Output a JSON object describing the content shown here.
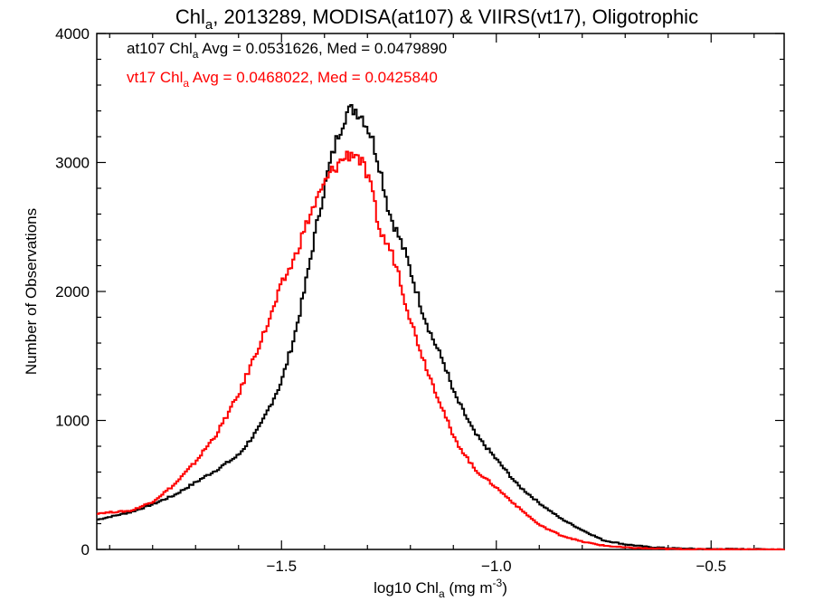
{
  "chart_data": {
    "type": "line",
    "title": {
      "pre": "Chl",
      "sub": "a",
      "post": ", 2013289, MODISA(at107) & VIIRS(vt17), Oligotrophic"
    },
    "xlabel": {
      "pre": "log10 Chl",
      "sub": "a",
      "mid": " (mg m",
      "sup": "-3",
      "post": ")"
    },
    "ylabel": "Number of Observations",
    "xlim": [
      -1.93,
      -0.33
    ],
    "ylim": [
      0,
      4000
    ],
    "x_ticks": [
      -1.5,
      -1.0,
      -0.5
    ],
    "x_tick_labels": [
      "−1.5",
      "−1.0",
      "−0.5"
    ],
    "y_ticks": [
      0,
      1000,
      2000,
      3000,
      4000
    ],
    "y_tick_labels": [
      "0",
      "1000",
      "2000",
      "3000",
      "4000"
    ],
    "grid": false,
    "series": [
      {
        "key": "at107",
        "color": "#000000",
        "annotation": {
          "pre": "at107 Chl",
          "sub": "a",
          "post": " Avg = 0.0531626, Med = 0.0479890"
        },
        "x": [
          -1.93,
          -1.85,
          -1.8,
          -1.75,
          -1.7,
          -1.65,
          -1.6,
          -1.55,
          -1.5,
          -1.47,
          -1.45,
          -1.43,
          -1.41,
          -1.39,
          -1.37,
          -1.35,
          -1.33,
          -1.31,
          -1.29,
          -1.27,
          -1.25,
          -1.23,
          -1.21,
          -1.19,
          -1.17,
          -1.15,
          -1.12,
          -1.1,
          -1.05,
          -1.0,
          -0.95,
          -0.9,
          -0.85,
          -0.8,
          -0.75,
          -0.7,
          -0.65,
          -0.6,
          -0.55,
          -0.5,
          -0.4,
          -0.33
        ],
        "y": [
          230,
          290,
          350,
          420,
          520,
          620,
          730,
          950,
          1300,
          1650,
          1950,
          2300,
          2650,
          2950,
          3200,
          3380,
          3420,
          3350,
          3200,
          2950,
          2620,
          2450,
          2280,
          2050,
          1830,
          1650,
          1430,
          1220,
          900,
          700,
          500,
          360,
          240,
          150,
          70,
          40,
          20,
          10,
          5,
          3,
          2,
          0
        ]
      },
      {
        "key": "vt17",
        "color": "#ff0000",
        "annotation": {
          "pre": "vt17 Chl",
          "sub": "a",
          "post": " Avg = 0.0468022, Med = 0.0425840"
        },
        "x": [
          -1.93,
          -1.85,
          -1.8,
          -1.75,
          -1.7,
          -1.65,
          -1.6,
          -1.55,
          -1.52,
          -1.5,
          -1.47,
          -1.45,
          -1.43,
          -1.41,
          -1.39,
          -1.37,
          -1.35,
          -1.33,
          -1.31,
          -1.29,
          -1.27,
          -1.25,
          -1.23,
          -1.21,
          -1.19,
          -1.17,
          -1.15,
          -1.12,
          -1.1,
          -1.05,
          -1.0,
          -0.95,
          -0.9,
          -0.85,
          -0.8,
          -0.75,
          -0.7,
          -0.65,
          -0.6,
          -0.55,
          -0.5,
          -0.4,
          -0.33
        ],
        "y": [
          280,
          300,
          370,
          500,
          680,
          900,
          1200,
          1600,
          1850,
          2050,
          2250,
          2450,
          2620,
          2760,
          2900,
          2980,
          3050,
          3080,
          2980,
          2780,
          2450,
          2350,
          2180,
          1900,
          1680,
          1480,
          1300,
          1050,
          870,
          620,
          480,
          330,
          190,
          110,
          60,
          30,
          15,
          8,
          4,
          2,
          1,
          1,
          0
        ]
      }
    ]
  }
}
